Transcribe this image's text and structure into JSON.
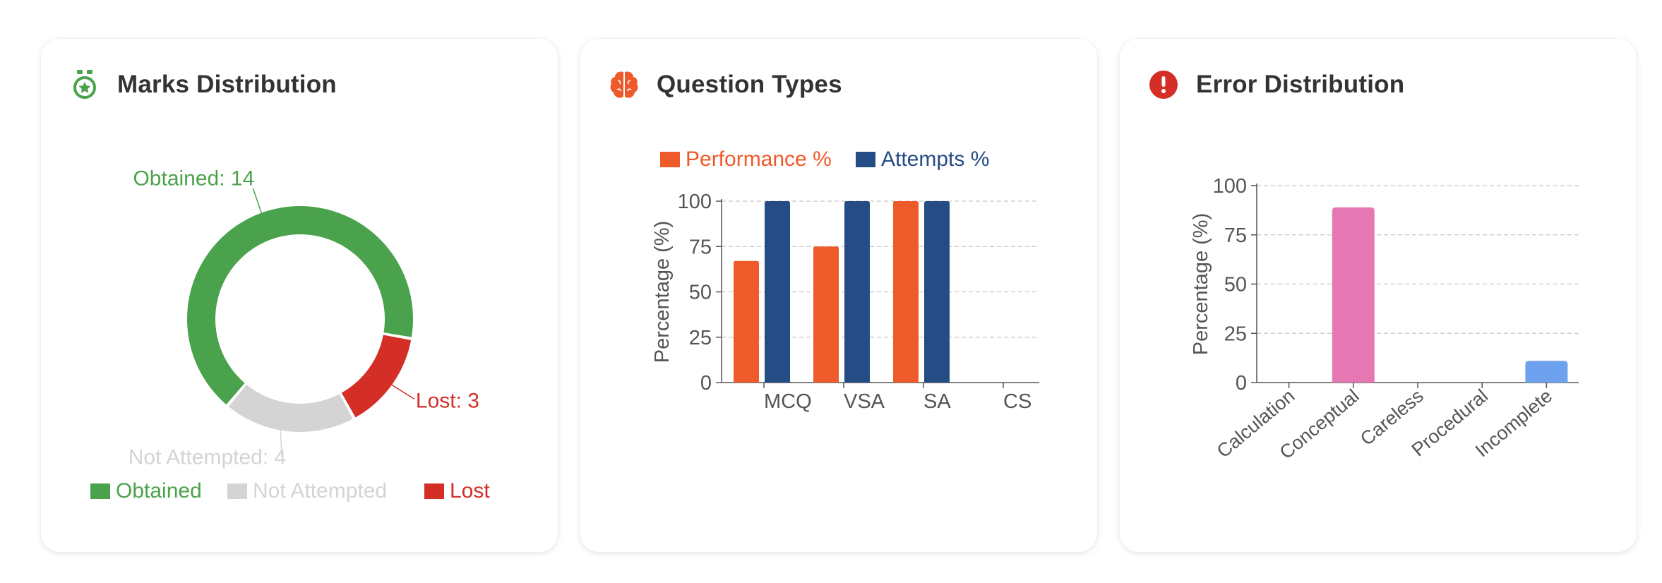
{
  "colors": {
    "obtained": "#4aa34c",
    "not_attempted": "#d4d4d4",
    "lost": "#d32f27",
    "performance": "#ee5a29",
    "attempts": "#264c85",
    "conceptual": "#e577b2",
    "incomplete": "#6fa2ee",
    "axis": "#555555"
  },
  "cards": {
    "marks": {
      "title": "Marks Distribution",
      "icon": "medal-star-icon"
    },
    "types": {
      "title": "Question Types",
      "icon": "brain-icon"
    },
    "errors": {
      "title": "Error Distribution",
      "icon": "alert-circle-icon"
    }
  },
  "chart_data": [
    {
      "type": "pie",
      "labels": [
        "Obtained",
        "Lost",
        "Not Attempted"
      ],
      "values": [
        14,
        3,
        4
      ],
      "slice_labels": [
        "Obtained: 14",
        "Lost: 3",
        "Not Attempted: 4"
      ],
      "legend": [
        "Obtained",
        "Not Attempted",
        "Lost"
      ],
      "legend_position": "bottom"
    },
    {
      "type": "bar",
      "categories": [
        "MCQ",
        "VSA",
        "SA",
        "CS"
      ],
      "series": [
        {
          "name": "Performance %",
          "values": [
            67,
            75,
            100,
            0
          ]
        },
        {
          "name": "Attempts %",
          "values": [
            100,
            100,
            100,
            0
          ]
        }
      ],
      "ylabel": "Percentage (%)",
      "ylim": [
        0,
        100
      ],
      "yticks": [
        "0",
        "25",
        "50",
        "75",
        "100"
      ],
      "grid": true,
      "legend_position": "top"
    },
    {
      "type": "bar",
      "categories": [
        "Calculation",
        "Conceptual",
        "Careless",
        "Procedural",
        "Incomplete"
      ],
      "values": [
        0,
        89,
        0,
        0,
        11
      ],
      "ylabel": "Percentage (%)",
      "ylim": [
        0,
        100
      ],
      "yticks": [
        "0",
        "25",
        "50",
        "75",
        "100"
      ],
      "grid": true
    }
  ]
}
